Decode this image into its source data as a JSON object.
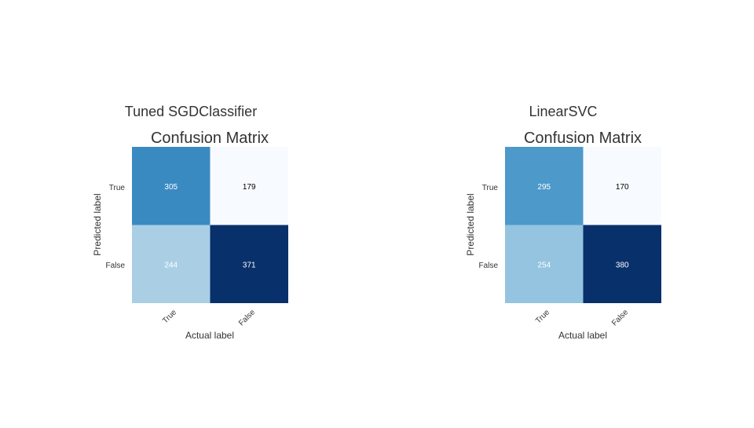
{
  "colors": {
    "text": "#333333",
    "cell_text_light": "#ffffff",
    "cell_text_dark": "#000000",
    "background": "#ffffff"
  },
  "chart_data": [
    {
      "type": "heatmap",
      "panel_title": "Tuned SGDClassifier",
      "title": "Confusion Matrix",
      "xlabel": "Actual label",
      "ylabel": "Predicted label",
      "x_ticks": [
        "True",
        "False"
      ],
      "y_ticks": [
        "True",
        "False"
      ],
      "values": [
        [
          305,
          179
        ],
        [
          244,
          371
        ]
      ],
      "colormap": "Blues",
      "grid": false
    },
    {
      "type": "heatmap",
      "panel_title": "LinearSVC",
      "title": "Confusion Matrix",
      "xlabel": "Actual label",
      "ylabel": "Predicted label",
      "x_ticks": [
        "True",
        "False"
      ],
      "y_ticks": [
        "True",
        "False"
      ],
      "values": [
        [
          295,
          170
        ],
        [
          254,
          380
        ]
      ],
      "colormap": "Blues",
      "grid": false
    }
  ]
}
